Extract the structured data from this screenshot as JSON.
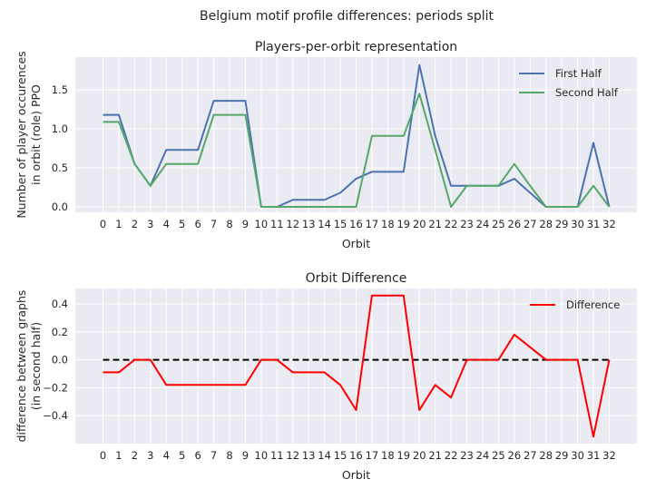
{
  "suptitle": "Belgium motif profile differences: periods split",
  "chart_data": [
    {
      "type": "line",
      "title": "Players-per-orbit representation",
      "xlabel": "Orbit",
      "ylabel_lines": [
        "Number of player occurences",
        "in orbit (role) PPO"
      ],
      "x": [
        0,
        1,
        2,
        3,
        4,
        5,
        6,
        7,
        8,
        9,
        10,
        11,
        12,
        13,
        14,
        15,
        16,
        17,
        18,
        19,
        20,
        21,
        22,
        23,
        24,
        25,
        26,
        27,
        28,
        29,
        30,
        31,
        32
      ],
      "xlim": [
        -1.75,
        33.75
      ],
      "ylim": [
        -0.07,
        1.92
      ],
      "yticks": [
        0.0,
        0.5,
        1.0,
        1.5
      ],
      "ytick_labels": [
        "0.0",
        "0.5",
        "1.0",
        "1.5"
      ],
      "grid": true,
      "legend_position": "top-right",
      "series": [
        {
          "name": "First Half",
          "color": "#4c72b0",
          "values": [
            1.18,
            1.18,
            0.55,
            0.27,
            0.73,
            0.73,
            0.73,
            1.36,
            1.36,
            1.36,
            0.0,
            0.0,
            0.09,
            0.09,
            0.09,
            0.18,
            0.36,
            0.45,
            0.45,
            0.45,
            1.82,
            0.91,
            0.27,
            0.27,
            0.27,
            0.27,
            0.36,
            0.18,
            0.0,
            0.0,
            0.0,
            0.82,
            0.0
          ]
        },
        {
          "name": "Second Half",
          "color": "#55a868",
          "values": [
            1.09,
            1.09,
            0.55,
            0.27,
            0.55,
            0.55,
            0.55,
            1.18,
            1.18,
            1.18,
            0.0,
            0.0,
            0.0,
            0.0,
            0.0,
            0.0,
            0.0,
            0.91,
            0.91,
            0.91,
            1.45,
            0.73,
            0.0,
            0.27,
            0.27,
            0.27,
            0.55,
            0.27,
            0.0,
            0.0,
            0.0,
            0.27,
            0.0
          ]
        }
      ]
    },
    {
      "type": "line",
      "title": "Orbit Difference",
      "xlabel": "Orbit",
      "ylabel_lines": [
        "difference between graphs",
        "(in second half)"
      ],
      "x": [
        0,
        1,
        2,
        3,
        4,
        5,
        6,
        7,
        8,
        9,
        10,
        11,
        12,
        13,
        14,
        15,
        16,
        17,
        18,
        19,
        20,
        21,
        22,
        23,
        24,
        25,
        26,
        27,
        28,
        29,
        30,
        31,
        32
      ],
      "xlim": [
        -1.75,
        33.75
      ],
      "ylim": [
        -0.6,
        0.51
      ],
      "yticks": [
        -0.4,
        -0.2,
        0.0,
        0.2,
        0.4
      ],
      "ytick_labels": [
        "−0.4",
        "−0.2",
        "0.0",
        "0.2",
        "0.4"
      ],
      "grid": true,
      "legend_position": "top-right",
      "baseline": {
        "y": 0.0,
        "color": "#000000",
        "style": "dashed"
      },
      "series": [
        {
          "name": "Difference",
          "color": "#ff0000",
          "values": [
            -0.09,
            -0.09,
            0.0,
            0.0,
            -0.18,
            -0.18,
            -0.18,
            -0.18,
            -0.18,
            -0.18,
            0.0,
            0.0,
            -0.09,
            -0.09,
            -0.09,
            -0.18,
            -0.36,
            0.46,
            0.46,
            0.46,
            -0.36,
            -0.18,
            -0.27,
            0.0,
            0.0,
            0.0,
            0.18,
            0.09,
            0.0,
            0.0,
            0.0,
            -0.55,
            0.0
          ]
        }
      ]
    }
  ]
}
